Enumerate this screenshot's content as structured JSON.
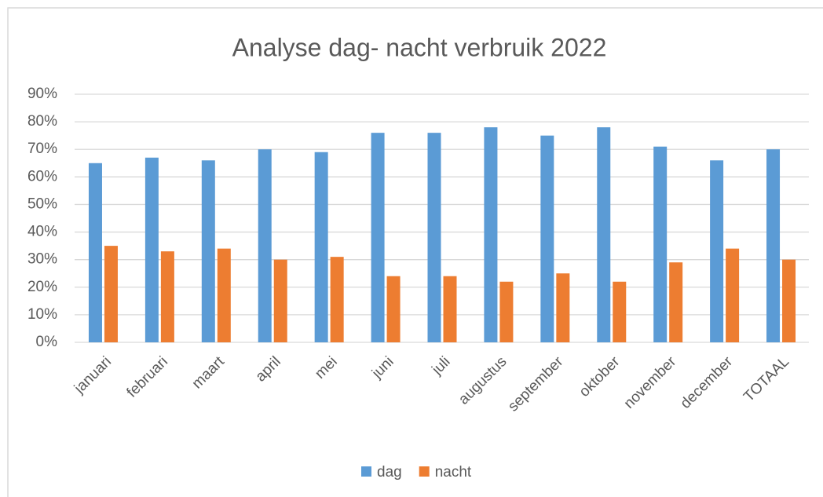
{
  "chart_data": {
    "type": "bar",
    "title": "Analyse dag- nacht verbruik 2022",
    "categories": [
      "januari",
      "februari",
      "maart",
      "april",
      "mei",
      "juni",
      "juli",
      "augustus",
      "september",
      "oktober",
      "november",
      "december",
      "TOTAAL"
    ],
    "series": [
      {
        "name": "dag",
        "color": "#5b9bd5",
        "values": [
          65,
          67,
          66,
          70,
          69,
          76,
          76,
          78,
          75,
          78,
          71,
          66,
          70
        ]
      },
      {
        "name": "nacht",
        "color": "#ed7d31",
        "values": [
          35,
          33,
          34,
          30,
          31,
          24,
          24,
          22,
          25,
          22,
          29,
          34,
          30
        ]
      }
    ],
    "ylim": [
      0,
      90
    ],
    "yticks": [
      {
        "value": 0,
        "label": "0%"
      },
      {
        "value": 10,
        "label": "10%"
      },
      {
        "value": 20,
        "label": "20%"
      },
      {
        "value": 30,
        "label": "30%"
      },
      {
        "value": 40,
        "label": "40%"
      },
      {
        "value": 50,
        "label": "50%"
      },
      {
        "value": 60,
        "label": "60%"
      },
      {
        "value": 70,
        "label": "70%"
      },
      {
        "value": 80,
        "label": "80%"
      },
      {
        "value": 90,
        "label": "90%"
      }
    ],
    "grid": true,
    "legend": "bottom"
  }
}
